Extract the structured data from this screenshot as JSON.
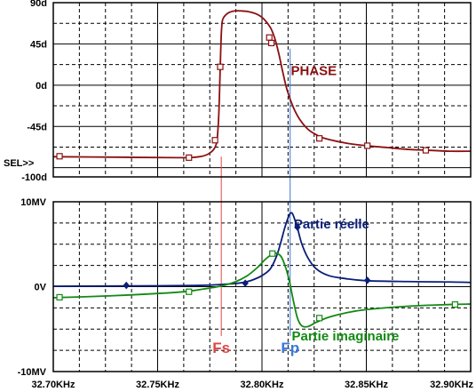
{
  "chart_data": [
    {
      "type": "line",
      "panel": "top",
      "y_ticks": [
        "90d",
        "45d",
        "0d",
        "-45d",
        "-100d"
      ],
      "ylim": [
        -100,
        90
      ],
      "sel_marker": "SEL>>",
      "annotations": [
        {
          "text": "PHASE",
          "color": "#8b1010",
          "x": 32.81,
          "y": 15
        }
      ],
      "series": [
        {
          "name": "PHASE",
          "color": "#8b1010",
          "marker": "square",
          "x": [
            32.7,
            32.73,
            32.76,
            32.77,
            32.775,
            32.778,
            32.779,
            32.7795,
            32.78,
            32.7805,
            32.781,
            32.782,
            32.784,
            32.787,
            32.79,
            32.794,
            32.798,
            32.801,
            32.804,
            32.806,
            32.808,
            32.81,
            32.812,
            32.815,
            32.818,
            32.822,
            32.826,
            32.83,
            32.84,
            32.85,
            32.86,
            32.87,
            32.88,
            32.89,
            32.9
          ],
          "y": [
            -78,
            -78.5,
            -79,
            -78,
            -74,
            -65,
            -45,
            -20,
            20,
            55,
            70,
            75,
            79,
            81,
            81,
            80,
            77,
            72,
            63,
            52,
            35,
            14,
            -5,
            -24,
            -37,
            -48,
            -54,
            -58,
            -63,
            -66,
            -68,
            -70,
            -71,
            -72,
            -72
          ],
          "marker_x": [
            32.703,
            32.765,
            32.7775,
            32.78,
            32.8035,
            32.8045,
            32.8275,
            32.8505,
            32.8785
          ],
          "marker_y": [
            -77.5,
            -79,
            -60,
            20,
            52,
            46,
            -58,
            -66,
            -71
          ]
        }
      ]
    },
    {
      "type": "line",
      "panel": "bottom",
      "y_ticks": [
        "10MV",
        "0V",
        "-10MV"
      ],
      "ylim": [
        -10,
        10
      ],
      "x_ticks": [
        "32.70KHz",
        "32.75KHz",
        "32.80KHz",
        "32.85KHz",
        "32.90KHz"
      ],
      "xlim": [
        32.7,
        32.9
      ],
      "annotations": [
        {
          "text": "Partie réelle",
          "color": "#0a1f78",
          "x": 32.811,
          "y": 7.4
        },
        {
          "text": "Partie imaginaire",
          "color": "#138a13",
          "x": 32.81,
          "y": -5.8
        }
      ],
      "markers_text": [
        {
          "text": "Fs",
          "color": "#e04545",
          "x": 32.7805
        },
        {
          "text": "Fp",
          "color": "#3a78d8",
          "x": 32.8135
        }
      ],
      "series": [
        {
          "name": "Partie réelle",
          "color": "#0a1f78",
          "marker": "diamond",
          "x": [
            32.7,
            32.75,
            32.77,
            32.78,
            32.79,
            32.795,
            32.8,
            32.804,
            32.807,
            32.809,
            32.811,
            32.813,
            32.814,
            32.815,
            32.817,
            32.819,
            32.822,
            32.826,
            32.832,
            32.84,
            32.85,
            32.87,
            32.89,
            32.9
          ],
          "y": [
            0.05,
            0.1,
            0.15,
            0.25,
            0.45,
            0.75,
            1.3,
            2.1,
            3.6,
            5.2,
            7.0,
            8.4,
            8.7,
            8.4,
            6.9,
            5.1,
            3.4,
            2.1,
            1.3,
            0.95,
            0.7,
            0.6,
            0.55,
            0.5
          ],
          "marker_x": [
            32.735,
            32.792,
            32.817,
            32.8505
          ],
          "marker_y": [
            0.15,
            0.4,
            7.0,
            0.75
          ]
        },
        {
          "name": "Partie imaginaire",
          "color": "#138a13",
          "marker": "square",
          "x": [
            32.7,
            32.73,
            32.76,
            32.77,
            32.78,
            32.787,
            32.793,
            32.798,
            32.802,
            32.806,
            32.809,
            32.811,
            32.813,
            32.815,
            32.817,
            32.819,
            32.822,
            32.826,
            32.832,
            32.84,
            32.85,
            32.87,
            32.89,
            32.9
          ],
          "y": [
            -1.3,
            -1.05,
            -0.65,
            -0.35,
            0.05,
            0.55,
            1.3,
            2.3,
            3.3,
            3.95,
            3.6,
            2.5,
            0.8,
            -1.6,
            -3.7,
            -4.6,
            -4.7,
            -4.2,
            -3.6,
            -3.1,
            -2.7,
            -2.3,
            -2.1,
            -2.05
          ],
          "marker_x": [
            32.703,
            32.765,
            32.805,
            32.8275,
            32.8925
          ],
          "marker_y": [
            -1.25,
            -0.6,
            3.9,
            -3.7,
            -2.1
          ]
        }
      ]
    }
  ]
}
